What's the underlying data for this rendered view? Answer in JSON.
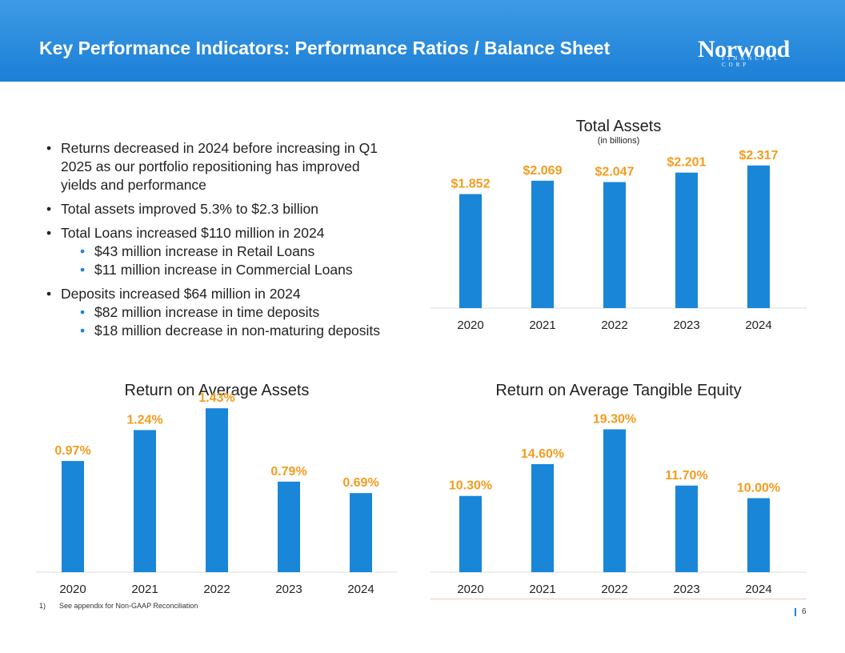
{
  "header": {
    "title": "Key Performance Indicators: Performance Ratios / Balance Sheet"
  },
  "logo": {
    "word": "Norwood",
    "sub": "FINANCIAL CORP"
  },
  "colors": {
    "bar": "#1a86d8",
    "label": "#f39c1f",
    "header": "#2a8ddf"
  },
  "bullets": [
    {
      "text": "Returns decreased in 2024 before increasing in Q1 2025 as our portfolio repositioning has improved yields and performance",
      "subs": []
    },
    {
      "text": "Total assets improved 5.3% to $2.3 billion",
      "subs": []
    },
    {
      "text": "Total Loans increased $110 million in 2024",
      "subs": [
        "$43 million increase in Retail Loans",
        "$11 million increase in Commercial Loans"
      ]
    },
    {
      "text": "Deposits increased $64 million in 2024",
      "subs": [
        "$82 million increase in time deposits",
        "$18 million decrease in non-maturing deposits"
      ]
    }
  ],
  "chart_data": [
    {
      "type": "bar",
      "title": "Total Assets",
      "subtitle": "(in billions)",
      "categories": [
        "2020",
        "2021",
        "2022",
        "2023",
        "2024"
      ],
      "values": [
        1.852,
        2.069,
        2.047,
        2.201,
        2.317
      ],
      "labels": [
        "$1.852",
        "$2.069",
        "$2.047",
        "$2.201",
        "$2.317"
      ],
      "ylim": [
        0,
        2.6
      ]
    },
    {
      "type": "bar",
      "title": "Return on Average Assets",
      "subtitle": "",
      "categories": [
        "2020",
        "2021",
        "2022",
        "2023",
        "2024"
      ],
      "values": [
        0.97,
        1.24,
        1.43,
        0.79,
        0.69
      ],
      "labels": [
        "0.97%",
        "1.24%",
        "1.43%",
        "0.79%",
        "0.69%"
      ],
      "ylim": [
        0,
        1.55
      ]
    },
    {
      "type": "bar",
      "title": "Return on Average Tangible Equity",
      "subtitle": "",
      "categories": [
        "2020",
        "2021",
        "2022",
        "2023",
        "2024"
      ],
      "values": [
        10.3,
        14.6,
        19.3,
        11.7,
        10.0
      ],
      "labels": [
        "10.30%",
        "14.60%",
        "19.30%",
        "11.70%",
        "10.00%"
      ],
      "ylim": [
        0,
        24
      ]
    }
  ],
  "footnote": {
    "num": "1)",
    "text": "See appendix for Non-GAAP Reconciliation"
  },
  "page": {
    "number": "6"
  }
}
